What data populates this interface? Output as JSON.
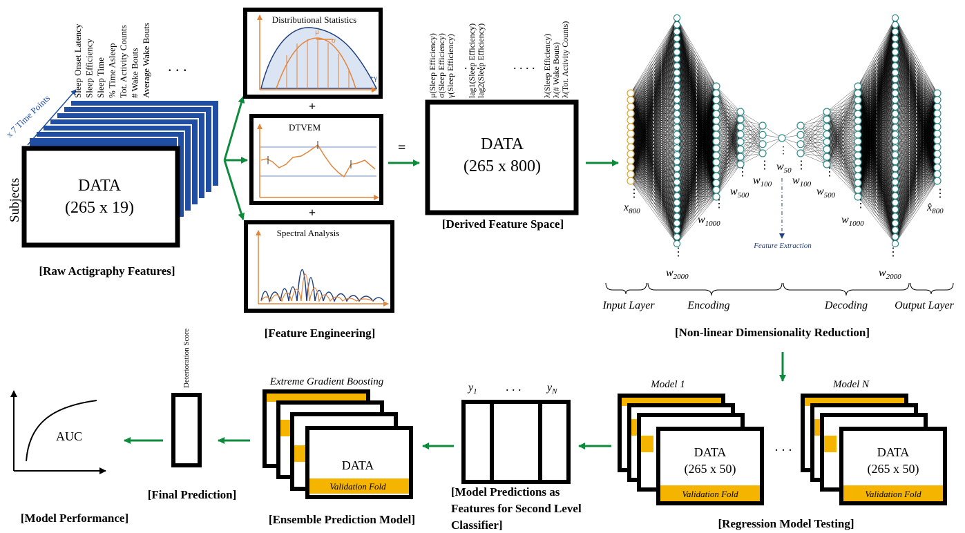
{
  "raw": {
    "caption": "[Raw Actigraphy Features]",
    "data_label": "DATA",
    "dims": "(265 x 19)",
    "subjects_label": "Subjects",
    "time_label": "x 7 Time Points",
    "features": [
      "Sleep Onset Latency",
      "Sleep Efficiency",
      "Sleep Time",
      "% Time Asleep",
      "Tot. Activity Counts",
      "# Wake Bouts",
      "Average Wake Bouts"
    ],
    "ellipsis": ". . ."
  },
  "engineering": {
    "caption": "[Feature Engineering]",
    "panel1_title": "Distributional  Statistics",
    "mu": "μ",
    "sigma": "σ",
    "gamma": "+γ",
    "plus": "+",
    "panel2_title": "DTVEM",
    "panel3_title": "Spectral Analysis",
    "equals": "="
  },
  "derived": {
    "caption": "[Derived Feature Space]",
    "data_label": "DATA",
    "dims": "(265 x 800)",
    "features_left": [
      "μ(Sleep Efficiency)",
      "σ(Sleep Efficiency)",
      "γ(Sleep Efficiency)"
    ],
    "features_mid": [
      "lag1(Sleep Efficiency)",
      "lag2(Sleep Efficiency)"
    ],
    "features_right": [
      "λ(Sleep Efficiency)",
      "λ(# Wake Bouts)",
      "λ(Tot. Activity Counts)"
    ],
    "ellipsis": ". . . ."
  },
  "autoencoder": {
    "caption": "[Non-linear Dimensionality Reduction]",
    "x_in": "x",
    "x_in_sub": "800",
    "x_out": "x̂",
    "x_out_sub": "800",
    "w": "w",
    "w1000": "1000",
    "w2000": "2000",
    "w500": "500",
    "w100": "100",
    "w50": "50",
    "feature_extraction": "Feature Extraction",
    "input_layer": "Input Layer",
    "encoding": "Encoding",
    "decoding": "Decoding",
    "output_layer": "Output Layer"
  },
  "regression": {
    "caption": "[Regression Model Testing]",
    "model1": "Model 1",
    "modelN": "Model N",
    "data_label": "DATA",
    "dims": "(265 x 50)",
    "validation": "Validation Fold",
    "ellipsis": ". . ."
  },
  "second_level": {
    "caption_lines": [
      "[Model Predictions as",
      "Features for Second Level",
      "Classifier]"
    ],
    "y": "y",
    "y1_sub": "1",
    "yN_sub": "N",
    "ellipsis": ". . ."
  },
  "ensemble": {
    "caption": "[Ensemble Prediction Model]",
    "title": "Extreme Gradient Boosting",
    "data_label": "DATA",
    "validation": "Validation Fold"
  },
  "final": {
    "caption": "[Final Prediction]",
    "score_label": "Deterioration Score"
  },
  "performance": {
    "caption": "[Model Performance]",
    "auc": "AUC"
  },
  "colors": {
    "blue": "#1f4ea3",
    "green": "#0d8a3c",
    "orange": "#e3853a",
    "gold": "#f4b400",
    "teal_node": "#2e8a8a",
    "input_node": "#d9a53a"
  }
}
